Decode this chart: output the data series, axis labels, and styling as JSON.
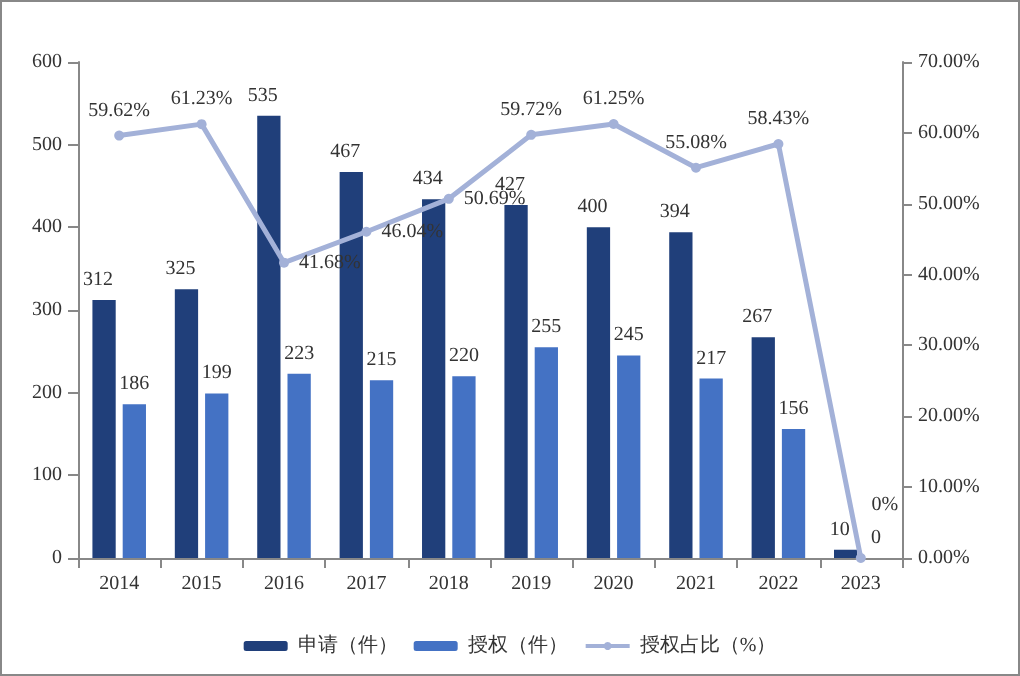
{
  "chart_data": {
    "type": "bar",
    "categories": [
      "2014",
      "2015",
      "2016",
      "2017",
      "2018",
      "2019",
      "2020",
      "2021",
      "2022",
      "2023"
    ],
    "series": [
      {
        "name": "申请（件）",
        "color": "#203f7a",
        "values": [
          312,
          325,
          535,
          467,
          434,
          427,
          400,
          394,
          267,
          10
        ]
      },
      {
        "name": "授权（件）",
        "color": "#4472c4",
        "values": [
          186,
          199,
          223,
          215,
          220,
          255,
          245,
          217,
          156,
          0
        ]
      },
      {
        "name": "授权占比（%）",
        "type": "line",
        "axis": "y2",
        "color": "#a3b1d8",
        "marker": "circle",
        "values": [
          59.62,
          61.23,
          41.68,
          46.04,
          50.69,
          59.72,
          61.25,
          55.08,
          58.43,
          0
        ],
        "value_labels": [
          "59.62%",
          "61.23%",
          "41.68%",
          "46.04%",
          "50.69%",
          "59.72%",
          "61.25%",
          "55.08%",
          "58.43%",
          "0%"
        ]
      }
    ],
    "data_labels": true,
    "ylim": [
      0,
      600
    ],
    "yticks": [
      0,
      100,
      200,
      300,
      400,
      500,
      600
    ],
    "y2lim": [
      0,
      70
    ],
    "y2ticks": [
      {
        "value": 0,
        "label": "0.00%"
      },
      {
        "value": 10,
        "label": "10.00%"
      },
      {
        "value": 20,
        "label": "20.00%"
      },
      {
        "value": 30,
        "label": "30.00%"
      },
      {
        "value": 40,
        "label": "40.00%"
      },
      {
        "value": 50,
        "label": "50.00%"
      },
      {
        "value": 60,
        "label": "60.00%"
      },
      {
        "value": 70,
        "label": "70.00%"
      }
    ],
    "grid": false,
    "legend": "bottom"
  }
}
